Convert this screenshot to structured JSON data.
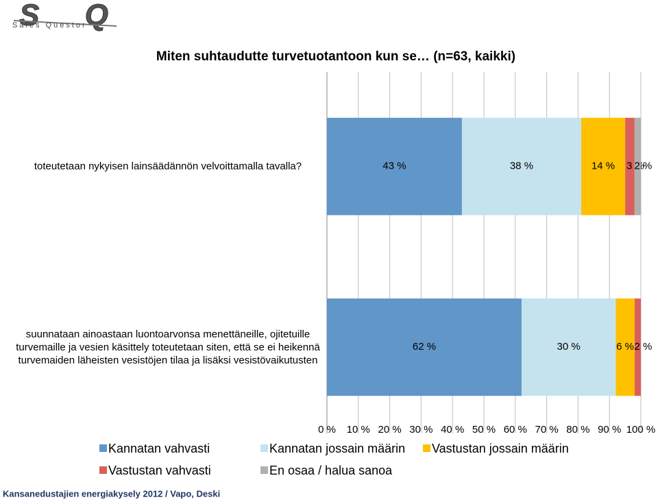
{
  "logo": {
    "mark": "SQ",
    "name": "Sales Questor"
  },
  "source": "Kansanedustajien energiakysely 2012 / Vapo, Deski",
  "chart_data": {
    "type": "stacked-barh",
    "title": "Miten suhtaudutte turvetuotantoon kun se… (n=63, kaikki)",
    "categories": [
      "toteutetaan nykyisen lainsäädännön velvoittamalla tavalla?",
      "suunnataan ainoastaan luontoarvonsa menettäneille, ojitetuille turvemaille ja vesien käsittely toteutetaan siten, että se ei heikennä turvemaiden läheisten vesistöjen tilaa ja lisäksi vesistövaikutusten"
    ],
    "series": [
      {
        "name": "Kannatan vahvasti",
        "color": "#6096c8",
        "values": [
          43,
          62
        ],
        "value_labels": [
          "43 %",
          "62 %"
        ]
      },
      {
        "name": "Kannatan jossain määrin",
        "color": "#c5e3ee",
        "values": [
          38,
          30
        ],
        "value_labels": [
          "38 %",
          "30 %"
        ]
      },
      {
        "name": "Vastustan jossain määrin",
        "color": "#ffc000",
        "values": [
          14,
          6
        ],
        "value_labels": [
          "14 %",
          "6 %"
        ]
      },
      {
        "name": "Vastustan vahvasti",
        "color": "#d9605a",
        "values": [
          3,
          2
        ],
        "value_labels": [
          "3 %",
          "2 %"
        ]
      },
      {
        "name": "En osaa / halua sanoa",
        "color": "#b0b0b0",
        "values": [
          2,
          null
        ],
        "value_labels": [
          "2 %",
          null
        ]
      }
    ],
    "xlim": [
      0,
      100
    ],
    "xticks": [
      {
        "value": 0,
        "label": "0 %"
      },
      {
        "value": 10,
        "label": "10 %"
      },
      {
        "value": 20,
        "label": "20 %"
      },
      {
        "value": 30,
        "label": "30 %"
      },
      {
        "value": 40,
        "label": "40 %"
      },
      {
        "value": 50,
        "label": "50 %"
      },
      {
        "value": 60,
        "label": "60 %"
      },
      {
        "value": 70,
        "label": "70 %"
      },
      {
        "value": 80,
        "label": "80 %"
      },
      {
        "value": 90,
        "label": "90 %"
      },
      {
        "value": 100,
        "label": "100 %"
      }
    ],
    "grid": true
  }
}
